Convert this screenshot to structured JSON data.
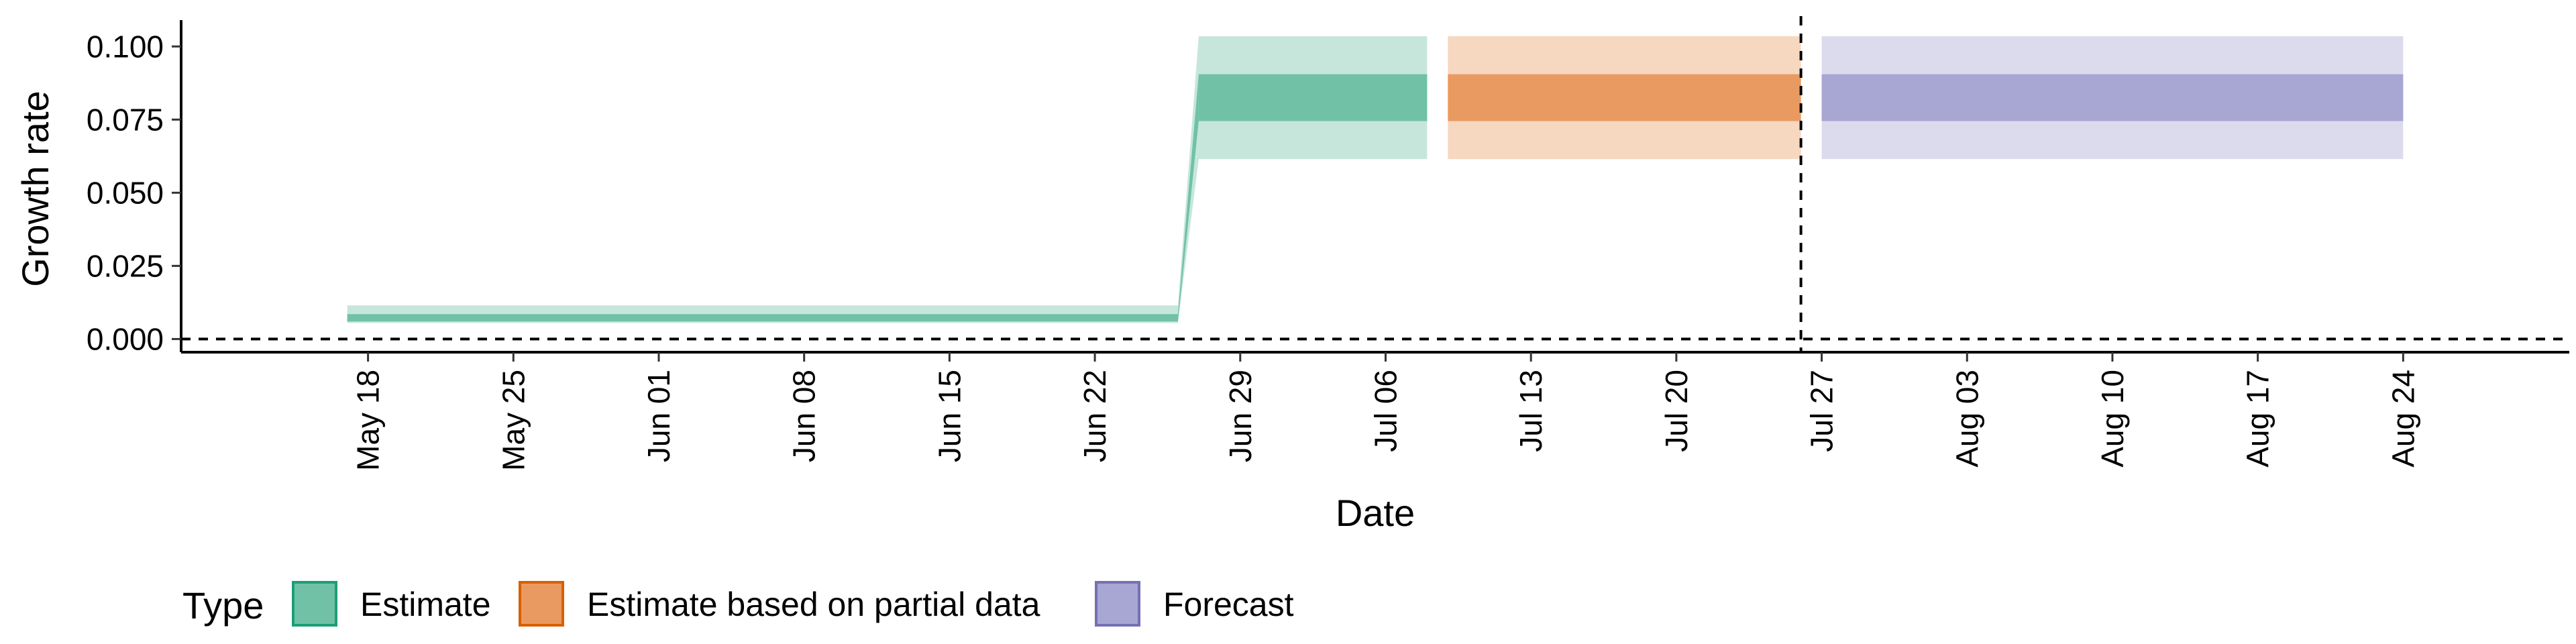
{
  "chart_data": {
    "type": "area",
    "title": "",
    "xlabel": "Date",
    "ylabel": "Growth rate",
    "xlim": [
      "2020-05-09",
      "2020-09-01"
    ],
    "ylim": [
      -0.0045,
      0.109
    ],
    "x_ticks": [
      "2020-05-18",
      "2020-05-25",
      "2020-06-01",
      "2020-06-08",
      "2020-06-15",
      "2020-06-22",
      "2020-06-29",
      "2020-07-06",
      "2020-07-13",
      "2020-07-20",
      "2020-07-27",
      "2020-08-03",
      "2020-08-10",
      "2020-08-17",
      "2020-08-24"
    ],
    "x_tick_labels": [
      "May 18",
      "May 25",
      "Jun 01",
      "Jun 08",
      "Jun 15",
      "Jun 22",
      "Jun 29",
      "Jul 06",
      "Jul 13",
      "Jul 20",
      "Jul 27",
      "Aug 03",
      "Aug 10",
      "Aug 17",
      "Aug 24"
    ],
    "y_ticks": [
      0,
      0.025,
      0.05,
      0.075,
      0.1
    ],
    "y_tick_labels": [
      "0.000",
      "0.025",
      "0.050",
      "0.075",
      "0.100"
    ],
    "reference_lines": {
      "horizontal_y": 0,
      "vertical_date": "2020-07-26",
      "style": "dashed"
    },
    "legend": {
      "title": "Type",
      "position": "bottom"
    },
    "grid": false,
    "series": [
      {
        "name": "Estimate",
        "color": "#1b9e77",
        "fill": "#71c1a7",
        "segments": [
          {
            "x": [
              "2020-05-17",
              "2020-06-26"
            ],
            "lower_90": [
              0.0055,
              0.0055
            ],
            "upper_90": [
              0.0115,
              0.0115
            ],
            "lower_50": [
              0.006,
              0.006
            ],
            "upper_50": [
              0.0085,
              0.0085
            ]
          },
          {
            "x": [
              "2020-06-26",
              "2020-06-27"
            ],
            "lower_90": [
              0.0055,
              0.0615
            ],
            "upper_90": [
              0.0115,
              0.1035
            ],
            "lower_50": [
              0.006,
              0.0745
            ],
            "upper_50": [
              0.0085,
              0.0905
            ]
          },
          {
            "x": [
              "2020-06-27",
              "2020-07-08"
            ],
            "lower_90": [
              0.0615,
              0.0615
            ],
            "upper_90": [
              0.1035,
              0.1035
            ],
            "lower_50": [
              0.0745,
              0.0745
            ],
            "upper_50": [
              0.0905,
              0.0905
            ]
          }
        ]
      },
      {
        "name": "Estimate based on partial data",
        "color": "#d95f02",
        "fill": "#e99a61",
        "segments": [
          {
            "x": [
              "2020-07-09",
              "2020-07-26"
            ],
            "lower_90": [
              0.0615,
              0.0615
            ],
            "upper_90": [
              0.1035,
              0.1035
            ],
            "lower_50": [
              0.0745,
              0.0745
            ],
            "upper_50": [
              0.0905,
              0.0905
            ]
          }
        ]
      },
      {
        "name": "Forecast",
        "color": "#7570b3",
        "fill": "#a8a6d3",
        "segments": [
          {
            "x": [
              "2020-07-27",
              "2020-08-24"
            ],
            "lower_90": [
              0.0615,
              0.0615
            ],
            "upper_90": [
              0.1035,
              0.1035
            ],
            "lower_50": [
              0.0745,
              0.0745
            ],
            "upper_50": [
              0.0905,
              0.0905
            ]
          }
        ]
      }
    ]
  }
}
